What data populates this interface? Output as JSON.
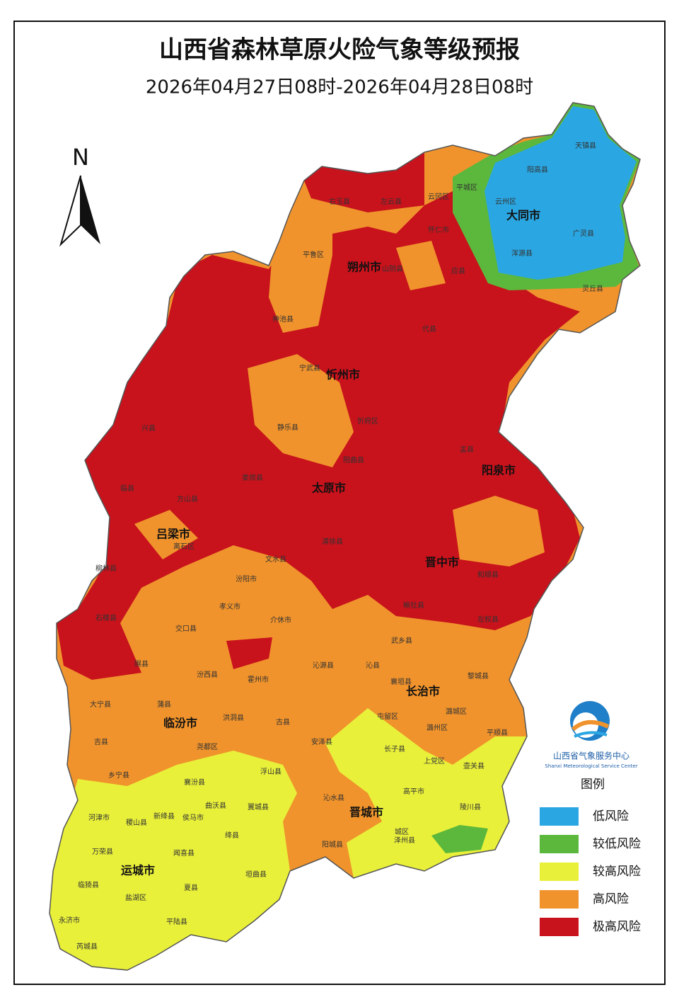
{
  "header": {
    "title": "山西省森林草原火险气象等级预报",
    "subtitle": "2026年04月27日08时-2026年04月28日08时"
  },
  "north": "N",
  "cities": [
    "大同市",
    "朔州市",
    "忻州市",
    "阳泉市",
    "太原市",
    "吕梁市",
    "晋中市",
    "长治市",
    "临汾市",
    "晋城市",
    "运城市"
  ],
  "counties": [
    "天镇县",
    "阳高县",
    "平城区",
    "云冈区",
    "云州区",
    "广灵县",
    "浑源县",
    "灵丘县",
    "平鲁区",
    "左云县",
    "右玉县",
    "怀仁市",
    "应县",
    "山阴县",
    "神池县",
    "代县",
    "宁武县",
    "忻府区",
    "静乐县",
    "盂县",
    "阳曲县",
    "娄烦县",
    "清徐县",
    "文水县",
    "汾阳市",
    "孝义市",
    "介休市",
    "交口县",
    "石楼县",
    "隰县",
    "汾西县",
    "霍州市",
    "沁源县",
    "沁县",
    "襄垣县",
    "黎城县",
    "大宁县",
    "蒲县",
    "洪洞县",
    "古县",
    "屯留区",
    "潞城区",
    "潞州区",
    "平顺县",
    "吉县",
    "尧都区",
    "安泽县",
    "长子县",
    "上党区",
    "壶关县",
    "乡宁县",
    "浮山县",
    "襄汾县",
    "高平市",
    "沁水县",
    "陵川县",
    "河津市",
    "稷山县",
    "新绛县",
    "侯马市",
    "曲沃县",
    "翼城县",
    "绛县",
    "城区",
    "泽州县",
    "阳城县",
    "万荣县",
    "闻喜县",
    "垣曲县",
    "临猗县",
    "盐湖区",
    "夏县",
    "永济市",
    "平陆县",
    "芮城县",
    "左权县",
    "和顺县",
    "榆社县",
    "武乡县",
    "柳林县",
    "离石区",
    "临县",
    "兴县",
    "方山县"
  ],
  "legend": {
    "title": "图例",
    "items": [
      {
        "label": "低风险",
        "color": "#2aa6e2"
      },
      {
        "label": "较低风险",
        "color": "#5cb83c"
      },
      {
        "label": "较高风险",
        "color": "#e9f03a"
      },
      {
        "label": "高风险",
        "color": "#f0932c"
      },
      {
        "label": "极高风险",
        "color": "#c8121c"
      }
    ]
  },
  "logo": {
    "name_cn": "山西省气象服务中心",
    "name_en": "Shanxi Meteorological Service Center"
  }
}
